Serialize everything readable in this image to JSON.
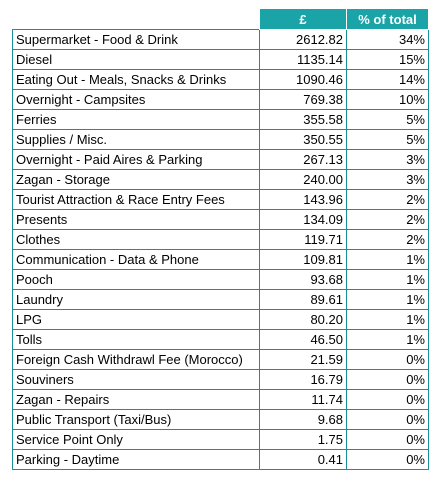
{
  "table": {
    "headers": {
      "category": "",
      "amount": "£",
      "percent": "% of total"
    },
    "rows": [
      {
        "category": "Supermarket - Food & Drink",
        "amount": "2612.82",
        "percent": "34%"
      },
      {
        "category": "Diesel",
        "amount": "1135.14",
        "percent": "15%"
      },
      {
        "category": "Eating Out - Meals, Snacks & Drinks",
        "amount": "1090.46",
        "percent": "14%"
      },
      {
        "category": "Overnight - Campsites",
        "amount": "769.38",
        "percent": "10%"
      },
      {
        "category": "Ferries",
        "amount": "355.58",
        "percent": "5%"
      },
      {
        "category": "Supplies / Misc.",
        "amount": "350.55",
        "percent": "5%"
      },
      {
        "category": "Overnight - Paid Aires & Parking",
        "amount": "267.13",
        "percent": "3%"
      },
      {
        "category": "Zagan - Storage",
        "amount": "240.00",
        "percent": "3%"
      },
      {
        "category": "Tourist Attraction & Race Entry Fees",
        "amount": "143.96",
        "percent": "2%"
      },
      {
        "category": "Presents",
        "amount": "134.09",
        "percent": "2%"
      },
      {
        "category": "Clothes",
        "amount": "119.71",
        "percent": "2%"
      },
      {
        "category": "Communication - Data & Phone",
        "amount": "109.81",
        "percent": "1%"
      },
      {
        "category": "Pooch",
        "amount": "93.68",
        "percent": "1%"
      },
      {
        "category": "Laundry",
        "amount": "89.61",
        "percent": "1%"
      },
      {
        "category": "LPG",
        "amount": "80.20",
        "percent": "1%"
      },
      {
        "category": "Tolls",
        "amount": "46.50",
        "percent": "1%"
      },
      {
        "category": "Foreign Cash Withdrawl Fee (Morocco)",
        "amount": "21.59",
        "percent": "0%"
      },
      {
        "category": "Souviners",
        "amount": "16.79",
        "percent": "0%"
      },
      {
        "category": "Zagan - Repairs",
        "amount": "11.74",
        "percent": "0%"
      },
      {
        "category": "Public Transport (Taxi/Bus)",
        "amount": "9.68",
        "percent": "0%"
      },
      {
        "category": "Service Point Only",
        "amount": "1.75",
        "percent": "0%"
      },
      {
        "category": "Parking - Daytime",
        "amount": "0.41",
        "percent": "0%"
      }
    ]
  },
  "colors": {
    "header_fill": "#1aa4a8",
    "grid_line": "#1a8f9b"
  }
}
